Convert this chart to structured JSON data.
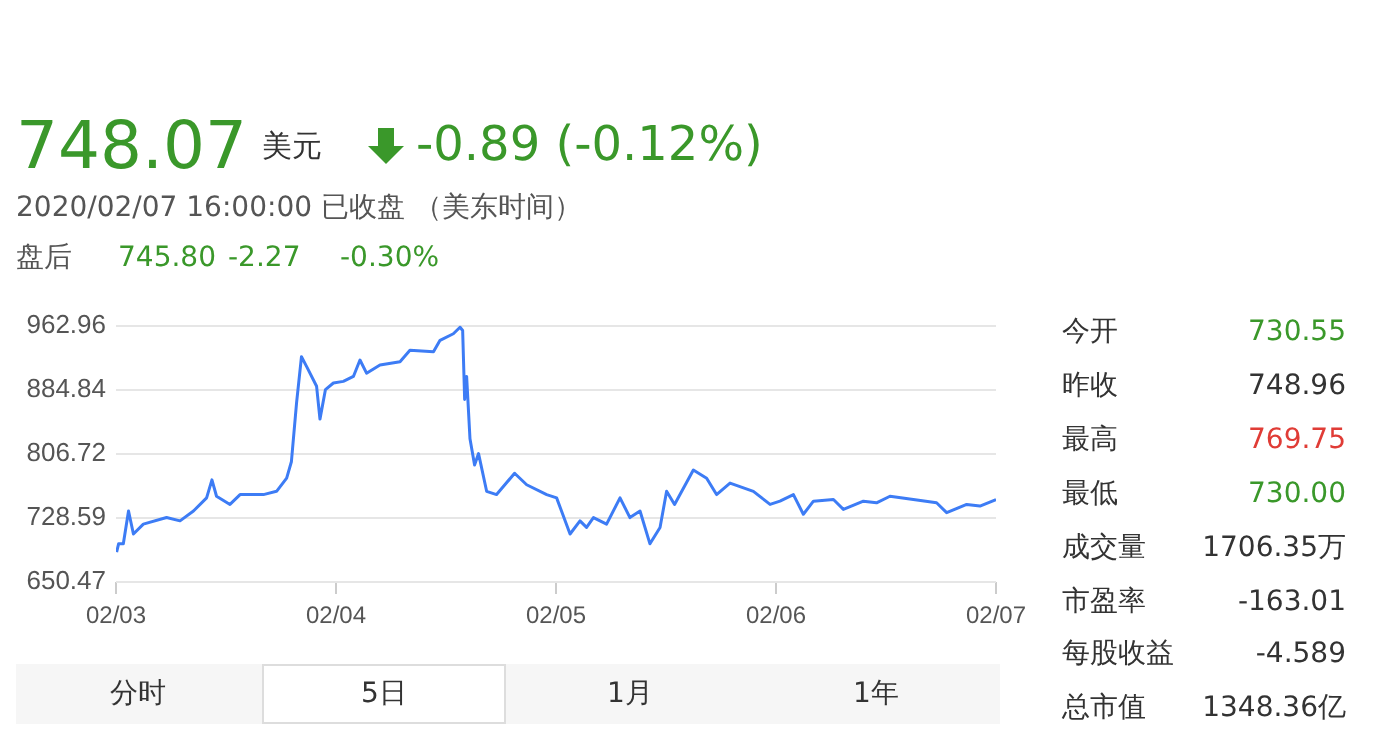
{
  "chart_data": {
    "type": "line",
    "annotations": [
      "748.07",
      "美元",
      "-0.89 (-0.12%)",
      "2020/02/07 16:00:00   已收盘  （美东时间）",
      "盘后",
      "745.80",
      "-2.27",
      "-0.30%",
      "今开",
      "730.55",
      "昨收",
      "748.96",
      "最高",
      "769.75",
      "最低",
      "730.00",
      "成交量",
      "1706.35万",
      "市盈率",
      "-163.01",
      "每股收益",
      "-4.589",
      "总市值",
      "1348.36亿",
      "分时",
      "5日",
      "1月",
      "1年"
    ],
    "x": [
      "2020-02-03T00:04",
      "2020-02-03T00:17",
      "2020-02-03T00:48",
      "2020-02-03T01:22",
      "2020-02-03T01:54",
      "2020-02-03T02:59",
      "2020-02-03T05:31",
      "2020-02-03T06:59",
      "2020-02-03T08:27",
      "2020-02-03T09:53",
      "2020-02-03T10:28",
      "2020-02-03T10:58",
      "2020-02-03T12:26",
      "2020-02-03T13:32",
      "2020-02-03T16:05",
      "2020-02-03T17:31",
      "2020-02-03T18:37",
      "2020-02-03T19:08",
      "2020-02-03T19:42",
      "2020-02-03T20:14",
      "2020-02-03T20:48",
      "2020-02-03T21:53",
      "2020-02-03T22:15",
      "2020-02-03T22:51",
      "2020-02-03T23:43",
      "2020-02-04T00:48",
      "2020-02-04T01:54",
      "2020-02-04T02:37",
      "2020-02-04T03:20",
      "2020-02-04T04:48",
      "2020-02-04T06:59",
      "2020-02-04T08:04",
      "2020-02-04T10:38",
      "2020-02-04T11:21",
      "2020-02-04T12:48",
      "2020-02-04T13:32",
      "2020-02-04T13:49",
      "2020-02-04T14:02",
      "2020-02-04T14:15",
      "2020-02-04T14:37",
      "2020-02-04T15:07",
      "2020-02-04T15:33",
      "2020-02-04T16:26",
      "2020-02-04T17:31",
      "2020-02-04T19:29",
      "2020-02-04T20:48",
      "2020-02-04T22:59",
      "2020-02-05T00:04",
      "2020-02-05T01:32",
      "2020-02-05T02:37",
      "2020-02-05T03:20",
      "2020-02-05T04:05",
      "2020-02-05T05:31",
      "2020-02-05T06:59",
      "2020-02-05T08:04",
      "2020-02-05T09:10",
      "2020-02-05T10:15",
      "2020-02-05T11:21",
      "2020-02-05T12:04",
      "2020-02-05T12:56",
      "2020-02-05T14:59",
      "2020-02-05T16:26",
      "2020-02-05T17:31",
      "2020-02-05T18:59",
      "2020-02-05T21:32",
      "2020-02-05T23:21",
      "2020-02-06T00:26",
      "2020-02-06T01:54",
      "2020-02-06T02:59",
      "2020-02-06T04:05",
      "2020-02-06T06:16",
      "2020-02-06T07:21",
      "2020-02-06T09:32",
      "2020-02-06T10:58",
      "2020-02-06T12:26",
      "2020-02-06T14:59",
      "2020-02-06T17:31",
      "2020-02-06T18:37",
      "2020-02-06T20:48",
      "2020-02-06T22:15",
      "2020-02-07T00:00"
    ],
    "series": [
      {
        "color": "#3d7cf5",
        "values": [
          687,
          697,
          697,
          737,
          709,
          721,
          729,
          725,
          737,
          753,
          775,
          755,
          745,
          757,
          757,
          761,
          777,
          797,
          869,
          925,
          913,
          889,
          849,
          885,
          893,
          895,
          901,
          921,
          905,
          915,
          919,
          933,
          931,
          945,
          953,
          961,
          957,
          873,
          901,
          825,
          793,
          807,
          761,
          757,
          783,
          769,
          757,
          753,
          709,
          725,
          717,
          729,
          721,
          753,
          729,
          737,
          697,
          717,
          761,
          745,
          787,
          777,
          757,
          771,
          761,
          745,
          749,
          757,
          733,
          749,
          751,
          739,
          749,
          747,
          755,
          751,
          747,
          735,
          745,
          743,
          751
        ]
      }
    ],
    "xlim": [
      "2020-02-03",
      "2020-02-07"
    ],
    "xticks": [
      {
        "value": "2020-02-03",
        "label": "02/03"
      },
      {
        "value": "2020-02-04",
        "label": "02/04"
      },
      {
        "value": "2020-02-05",
        "label": "02/05"
      },
      {
        "value": "2020-02-06",
        "label": "02/06"
      },
      {
        "value": "2020-02-07",
        "label": "02/07"
      }
    ],
    "ylim": [
      650.47,
      962.96
    ],
    "yticks": [
      650.47,
      728.59,
      806.72,
      884.84,
      962.96
    ],
    "grid": "y",
    "legend": false,
    "marker": "none",
    "line_style": "solid"
  }
}
